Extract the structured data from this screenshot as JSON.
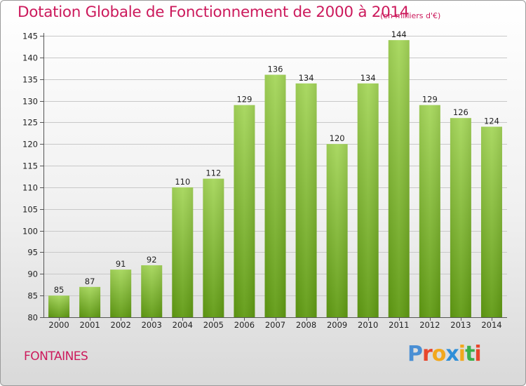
{
  "title": "Dotation Globale de Fonctionnement de 2000 à 2014",
  "unit_note": "(en milliers d'€)",
  "commune": "FONTAINES",
  "logo": {
    "text": "Proxiti",
    "letter_colors": [
      "#4a8fd4",
      "#e8462c",
      "#f2a81d",
      "#2f8fd8",
      "#f2a81d",
      "#3bb04a",
      "#e8462c"
    ]
  },
  "colors": {
    "title": "#cc1a5c",
    "bar_top": "#a5d65a",
    "bar_bottom": "#5f9a12",
    "grid": "#c8c8c8"
  },
  "chart_data": {
    "type": "bar",
    "title": "Dotation Globale de Fonctionnement de 2000 à 2014",
    "categories": [
      "2000",
      "2001",
      "2002",
      "2003",
      "2004",
      "2005",
      "2006",
      "2007",
      "2008",
      "2009",
      "2010",
      "2011",
      "2012",
      "2013",
      "2014"
    ],
    "values": [
      85,
      87,
      91,
      92,
      110,
      112,
      129,
      136,
      134,
      120,
      134,
      144,
      129,
      126,
      124
    ],
    "data_labels": [
      "85",
      "87",
      "91",
      "92",
      "110",
      "112",
      "129",
      "136",
      "134",
      "120",
      "134",
      "144",
      "129",
      "126",
      "124"
    ],
    "ylim": [
      80,
      145
    ],
    "yticks": [
      80,
      85,
      90,
      95,
      100,
      105,
      110,
      115,
      120,
      125,
      130,
      135,
      140,
      145
    ],
    "ytick_labels": [
      "80",
      "85",
      "90",
      "95",
      "100",
      "105",
      "110",
      "115",
      "120",
      "125",
      "130",
      "135",
      "140",
      "145"
    ],
    "xlabel": "",
    "ylabel": "",
    "grid": true,
    "legend": false
  }
}
